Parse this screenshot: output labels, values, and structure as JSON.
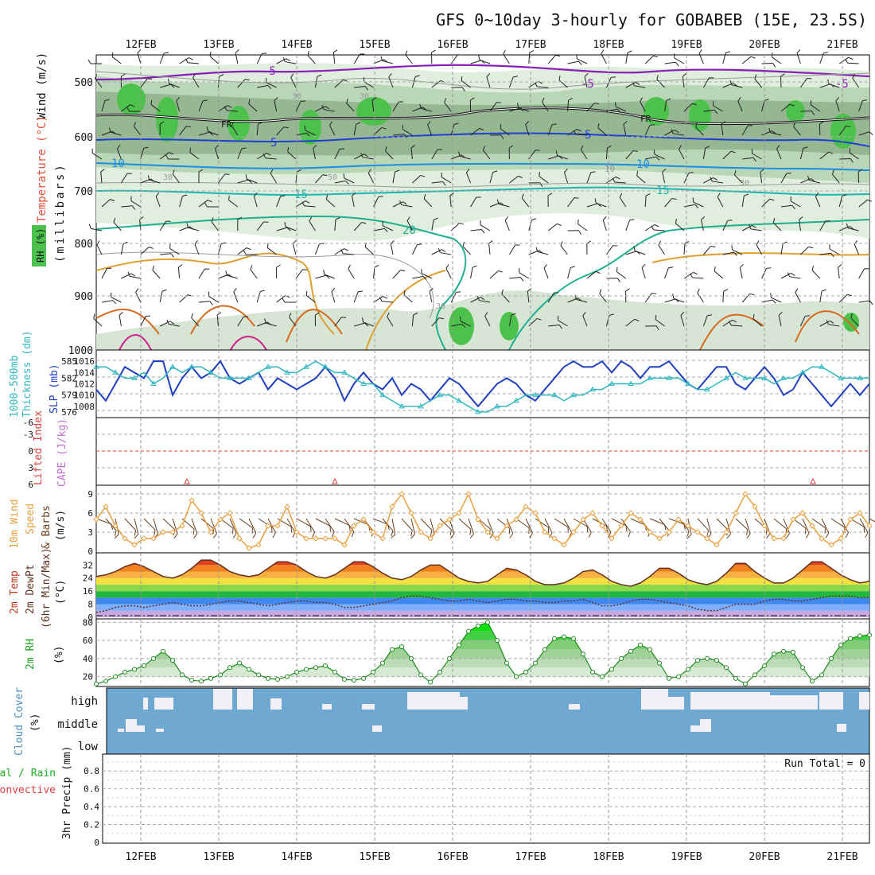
{
  "title": "GFS 0~10day 3-hourly for GOBABEB (15E, 23.5S)",
  "date_labels": [
    "12FEB",
    "13FEB",
    "14FEB",
    "15FEB",
    "16FEB",
    "17FEB",
    "18FEB",
    "19FEB",
    "20FEB",
    "21FEB"
  ],
  "panels": {
    "upper_air": {
      "axis_labels": [
        "Wind (m/s)",
        "Temperature (°C)",
        "RH (%)",
        "(millibars)"
      ],
      "pressure_ticks": [
        "500",
        "600",
        "700",
        "800",
        "900",
        "1000"
      ],
      "contour_labels": [
        "-5",
        "-5",
        "-5",
        "5",
        "5",
        "10",
        "10",
        "10",
        "15",
        "15",
        "20",
        "FR",
        "FR",
        "30",
        "30",
        "50",
        "30",
        "30",
        "30"
      ]
    },
    "pressure": {
      "axis_labels": [
        "1000-500mb",
        "Thickness (dm)",
        "SLP (mb)"
      ],
      "thickness_ticks": [
        "585",
        "582",
        "579",
        "576"
      ],
      "slp_ticks": [
        "1016",
        "1014",
        "1012",
        "1010",
        "1008"
      ]
    },
    "stability": {
      "axis_labels": [
        "Lifted Index",
        "CAPE (J/kg)"
      ],
      "li_ticks": [
        "-6",
        "-3",
        "0",
        "3",
        "6"
      ]
    },
    "wind10m": {
      "axis_labels": [
        "10m Wind",
        "Speed",
        "& Barbs",
        "(m/s)"
      ],
      "ticks": [
        "9",
        "6",
        "3",
        "0"
      ]
    },
    "temp2m": {
      "axis_labels": [
        "2m Temp",
        "2m DewPt",
        "(6hr Min/Max)",
        "(°C)"
      ],
      "ticks": [
        "32",
        "24",
        "16",
        "8",
        "0"
      ]
    },
    "rh2m": {
      "axis_labels": [
        "2m RH",
        "(%)"
      ],
      "ticks": [
        "80",
        "60",
        "40",
        "20"
      ]
    },
    "cloud": {
      "axis_labels": [
        "Cloud Cover",
        "(%)"
      ],
      "levels": [
        "high",
        "middle",
        "low"
      ]
    },
    "precip": {
      "axis_labels": [
        "Total / Rain",
        "Convective",
        "3hr Precip (mm)"
      ],
      "ticks": [
        "0.8",
        "0.6",
        "0.4",
        "0.2",
        "0"
      ],
      "run_total": "Run Total = 0"
    }
  },
  "colors": {
    "wind_speed": "#e8a040",
    "slp": "#2040c0",
    "thickness": "#30b8c0",
    "temp": "#603020",
    "rh_fill": "#20d020",
    "cloud_sky": "#6fa8d0"
  },
  "chart_data": [
    {
      "type": "line",
      "title": "SLP (mb)",
      "ylim": [
        1006,
        1018
      ],
      "series": [
        {
          "name": "SLP (mb)",
          "values": [
            1011,
            1009,
            1012,
            1015,
            1014,
            1013,
            1016,
            1016,
            1010,
            1013,
            1015,
            1013,
            1014,
            1016,
            1013,
            1012,
            1013,
            1014,
            1011,
            1013,
            1012,
            1011,
            1012,
            1013,
            1015,
            1013,
            1009,
            1012,
            1014,
            1012,
            1011,
            1013,
            1010,
            1012,
            1011,
            1009,
            1011,
            1013,
            1012,
            1010,
            1008,
            1010,
            1012,
            1013,
            1012,
            1010,
            1009,
            1011,
            1013,
            1015,
            1016,
            1015,
            1015,
            1016,
            1014,
            1016,
            1015,
            1013,
            1015,
            1015,
            1016,
            1014,
            1012,
            1011,
            1013,
            1015,
            1015,
            1012,
            1011,
            1013,
            1015,
            1013,
            1010,
            1011,
            1014,
            1012,
            1010,
            1008,
            1010,
            1012,
            1010,
            1012
          ]
        }
      ]
    },
    {
      "type": "line",
      "title": "1000-500mb Thickness (dm)",
      "ylim": [
        575,
        587
      ],
      "series": [
        {
          "name": "Thickness (dm)",
          "values": [
            584,
            584,
            583,
            582,
            582,
            583,
            581,
            582,
            584,
            583,
            584,
            584,
            583,
            582,
            582,
            582,
            582,
            583,
            584,
            584,
            583,
            583,
            584,
            585,
            584,
            583,
            583,
            582,
            581,
            581,
            579,
            578,
            577,
            577,
            577,
            578,
            579,
            579,
            578,
            577,
            576,
            576,
            577,
            577,
            578,
            579,
            579,
            579,
            579,
            578,
            579,
            579,
            580,
            580,
            581,
            581,
            581,
            581,
            582,
            582,
            582,
            582,
            581,
            580,
            580,
            581,
            582,
            583,
            582,
            582,
            582,
            581,
            582,
            582,
            583,
            584,
            584,
            583,
            582,
            582,
            582,
            582
          ]
        }
      ]
    },
    {
      "type": "line",
      "title": "10m Wind Speed (m/s)",
      "ylim": [
        0,
        10
      ],
      "series": [
        {
          "name": "10m Wind Speed",
          "values": [
            5,
            7,
            4,
            2,
            1,
            2,
            2,
            3,
            3,
            4,
            8,
            6,
            3,
            5,
            6,
            2,
            0.5,
            1,
            4,
            4,
            7,
            3,
            2,
            2,
            2,
            2,
            1,
            4,
            5,
            3,
            2,
            7,
            9,
            6,
            3,
            2,
            4,
            5,
            6,
            9,
            5,
            3,
            2,
            4,
            5,
            7,
            6,
            3,
            2,
            1,
            3,
            5,
            6,
            4,
            2,
            4,
            6,
            5,
            3,
            2,
            3,
            5,
            4,
            3,
            2,
            1,
            3,
            6,
            9,
            7,
            4,
            2,
            2,
            5,
            6,
            4,
            2,
            1,
            2,
            5,
            6,
            4
          ]
        }
      ]
    },
    {
      "type": "area",
      "title": "2m Temp (°C)",
      "ylim": [
        0,
        38
      ],
      "series": [
        {
          "name": "2m Temp",
          "values": [
            25,
            26,
            28,
            31,
            33,
            31,
            28,
            25,
            24,
            26,
            30,
            35,
            35,
            32,
            28,
            26,
            25,
            26,
            30,
            34,
            34,
            32,
            28,
            25,
            24,
            26,
            30,
            34,
            34,
            31,
            27,
            24,
            23,
            25,
            29,
            32,
            32,
            28,
            24,
            22,
            21,
            22,
            26,
            30,
            29,
            26,
            22,
            20,
            20,
            21,
            24,
            28,
            29,
            26,
            22,
            20,
            19,
            21,
            25,
            30,
            30,
            27,
            23,
            21,
            20,
            22,
            27,
            33,
            33,
            28,
            24,
            21,
            21,
            24,
            29,
            34,
            34,
            30,
            26,
            23,
            21,
            22
          ]
        },
        {
          "name": "2m DewPt",
          "values": [
            3,
            4,
            6,
            7,
            7,
            6,
            7,
            8,
            9,
            8,
            7,
            7,
            8,
            9,
            10,
            10,
            9,
            8,
            7,
            8,
            9,
            10,
            10,
            9,
            9,
            8,
            6,
            6,
            7,
            8,
            9,
            10,
            12,
            13,
            13,
            12,
            11,
            10,
            10,
            11,
            10,
            9,
            10,
            11,
            11,
            10,
            10,
            9,
            9,
            10,
            10,
            11,
            9,
            7,
            7,
            8,
            10,
            11,
            11,
            10,
            9,
            8,
            7,
            5,
            4,
            4,
            6,
            8,
            8,
            8,
            10,
            11,
            11,
            10,
            10,
            11,
            12,
            13,
            13,
            13,
            12,
            12
          ]
        }
      ]
    },
    {
      "type": "area",
      "title": "2m RH (%)",
      "ylim": [
        10,
        82
      ],
      "series": [
        {
          "name": "2m RH",
          "values": [
            12,
            15,
            20,
            25,
            28,
            32,
            40,
            48,
            38,
            22,
            16,
            15,
            18,
            22,
            30,
            35,
            28,
            22,
            18,
            17,
            20,
            25,
            28,
            30,
            32,
            25,
            17,
            16,
            18,
            25,
            35,
            50,
            53,
            40,
            22,
            14,
            25,
            40,
            55,
            70,
            76,
            80,
            60,
            35,
            20,
            25,
            35,
            50,
            62,
            64,
            62,
            45,
            25,
            20,
            28,
            40,
            48,
            55,
            50,
            35,
            18,
            20,
            28,
            38,
            40,
            38,
            30,
            18,
            12,
            22,
            32,
            45,
            48,
            47,
            30,
            15,
            22,
            40,
            55,
            62,
            65,
            66
          ]
        }
      ]
    }
  ]
}
